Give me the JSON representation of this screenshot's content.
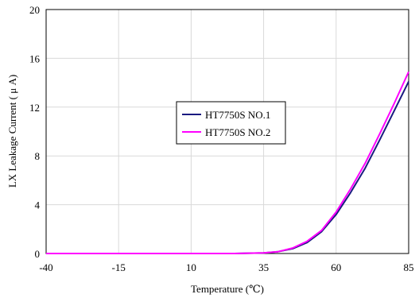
{
  "chart_data": {
    "type": "line",
    "title": "",
    "xlabel": "Temperature (℃)",
    "ylabel": "LX Leakage Current ( μ A)",
    "xlim": [
      -40,
      85
    ],
    "ylim": [
      0,
      20
    ],
    "x_ticks": [
      -40,
      -15,
      10,
      35,
      60,
      85
    ],
    "y_ticks": [
      0,
      4,
      8,
      12,
      16,
      20
    ],
    "x_tick_labels": [
      "-40",
      "-15",
      "10",
      "35",
      "60",
      "85"
    ],
    "y_tick_labels": [
      "0",
      "4",
      "8",
      "12",
      "16",
      "20"
    ],
    "grid": true,
    "legend_position": "center",
    "series": [
      {
        "name": "HT7750S NO.1",
        "color": "#1a1a80",
        "x": [
          -40,
          -15,
          10,
          25,
          35,
          40,
          45,
          50,
          55,
          60,
          65,
          70,
          75,
          80,
          85
        ],
        "y": [
          0,
          0,
          0,
          0,
          0.05,
          0.15,
          0.4,
          0.9,
          1.8,
          3.2,
          5.0,
          7.0,
          9.3,
          11.7,
          14.1
        ]
      },
      {
        "name": "HT7750S NO.2",
        "color": "#ff00ff",
        "x": [
          -40,
          -15,
          10,
          25,
          35,
          40,
          45,
          50,
          55,
          60,
          65,
          70,
          75,
          80,
          85
        ],
        "y": [
          0,
          0,
          0,
          0,
          0.05,
          0.15,
          0.45,
          1.0,
          1.9,
          3.4,
          5.3,
          7.4,
          9.8,
          12.3,
          14.9
        ]
      }
    ]
  }
}
